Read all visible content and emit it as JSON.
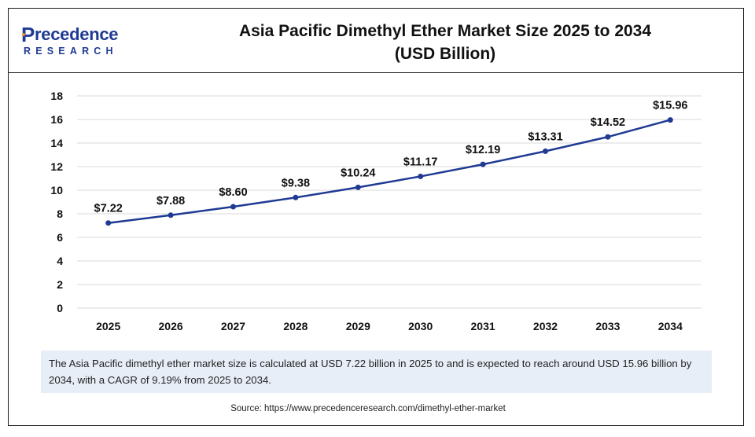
{
  "logo": {
    "top": "recedence",
    "first": "P",
    "bottom": "RESEARCH"
  },
  "title_line1": "Asia Pacific Dimethyl Ether Market Size 2025 to 2034",
  "title_line2": "(USD Billion)",
  "note": "The Asia Pacific dimethyl ether market size is calculated at USD 7.22 billion in 2025 to and is expected to reach around USD 15.96 billion by 2034, with a CAGR of 9.19% from 2025 to 2034.",
  "source": "Source: https://www.precedenceresearch.com/dimethyl-ether-market",
  "colors": {
    "line": "#1f3a93",
    "grid": "#d9d9d9",
    "note_bg": "#e8eef8"
  },
  "chart_data": {
    "type": "line",
    "categories": [
      "2025",
      "2026",
      "2027",
      "2028",
      "2029",
      "2030",
      "2031",
      "2032",
      "2033",
      "2034"
    ],
    "values": [
      7.22,
      7.88,
      8.6,
      9.38,
      10.24,
      11.17,
      12.19,
      13.31,
      14.52,
      15.96
    ],
    "data_labels": [
      "$7.22",
      "$7.88",
      "$8.60",
      "$9.38",
      "$10.24",
      "$11.17",
      "$12.19",
      "$13.31",
      "$14.52",
      "$15.96"
    ],
    "yticks": [
      "0",
      "2",
      "4",
      "6",
      "8",
      "10",
      "12",
      "14",
      "16",
      "18"
    ],
    "ylim": [
      0,
      18
    ],
    "title": "Asia Pacific Dimethyl Ether Market Size 2025 to 2034 (USD Billion)",
    "grid": true,
    "legend": "none"
  }
}
